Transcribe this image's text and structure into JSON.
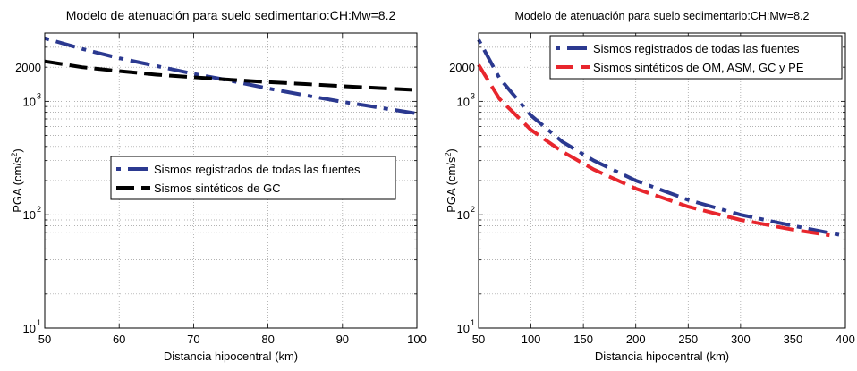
{
  "chart_data": [
    {
      "type": "line",
      "title": "Modelo de atenuación para suelo sedimentario:CH:Mw=8.2",
      "xlabel": "Distancia hipocentral (km)",
      "ylabel_base": "PGA (cm/s",
      "ylabel_sup": "2",
      "ylabel_end": ")",
      "xlim": [
        50,
        100
      ],
      "ylim": [
        10,
        4000
      ],
      "yscale": "log",
      "grid": true,
      "xticks": [
        50,
        60,
        70,
        80,
        90,
        100
      ],
      "xtick_labels": [
        "50",
        "60",
        "70",
        "80",
        "90",
        "100"
      ],
      "yticks_major": [
        10,
        100,
        1000
      ],
      "ytick_labels": [
        {
          "base": "10",
          "exp": "1"
        },
        {
          "base": "10",
          "exp": "2"
        },
        {
          "base": "10",
          "exp": "3"
        }
      ],
      "extra_ytick": {
        "value": 2000,
        "label": "2000"
      },
      "legend_position": "center-right",
      "series": [
        {
          "name": "Sismos registrados de todas las fuentes",
          "style": "dashdot",
          "color": "#2b3990",
          "x": [
            50,
            55,
            60,
            65,
            70,
            75,
            80,
            85,
            90,
            95,
            100
          ],
          "y": [
            3600,
            2900,
            2400,
            2050,
            1750,
            1520,
            1300,
            1130,
            990,
            880,
            780
          ]
        },
        {
          "name": "Sismos sintéticos de GC",
          "style": "dashed",
          "color": "#000000",
          "x": [
            50,
            55,
            60,
            65,
            70,
            75,
            80,
            85,
            90,
            95,
            100
          ],
          "y": [
            2250,
            2000,
            1850,
            1720,
            1630,
            1550,
            1480,
            1420,
            1360,
            1310,
            1260
          ]
        }
      ]
    },
    {
      "type": "line",
      "title": "Modelo de atenuación para suelo sedimentario:CH:Mw=8.2",
      "xlabel": "Distancia hipocentral (km)",
      "ylabel_base": "PGA (cm/s",
      "ylabel_sup": "2",
      "ylabel_end": ")",
      "xlim": [
        50,
        400
      ],
      "ylim": [
        10,
        4000
      ],
      "yscale": "log",
      "grid": true,
      "xticks": [
        50,
        100,
        150,
        200,
        250,
        300,
        350,
        400
      ],
      "xtick_labels": [
        "50",
        "100",
        "150",
        "200",
        "250",
        "300",
        "350",
        "400"
      ],
      "yticks_major": [
        10,
        100,
        1000
      ],
      "ytick_labels": [
        {
          "base": "10",
          "exp": "1"
        },
        {
          "base": "10",
          "exp": "2"
        },
        {
          "base": "10",
          "exp": "3"
        }
      ],
      "extra_ytick": {
        "value": 2000,
        "label": "2000"
      },
      "legend_position": "top-right",
      "series": [
        {
          "name": "Sismos registrados de todas las fuentes",
          "style": "dashdot",
          "color": "#2b3990",
          "x": [
            50,
            70,
            100,
            130,
            160,
            200,
            250,
            300,
            350,
            400
          ],
          "y": [
            3500,
            1600,
            750,
            440,
            300,
            200,
            135,
            100,
            80,
            65
          ]
        },
        {
          "name": "Sismos sintéticos de OM, ASM, GC y PE",
          "style": "dashed",
          "color": "#e8262d",
          "x": [
            50,
            70,
            100,
            130,
            160,
            200,
            250,
            300,
            350,
            385
          ],
          "y": [
            2100,
            1050,
            560,
            360,
            250,
            170,
            118,
            90,
            74,
            66
          ]
        }
      ]
    }
  ]
}
